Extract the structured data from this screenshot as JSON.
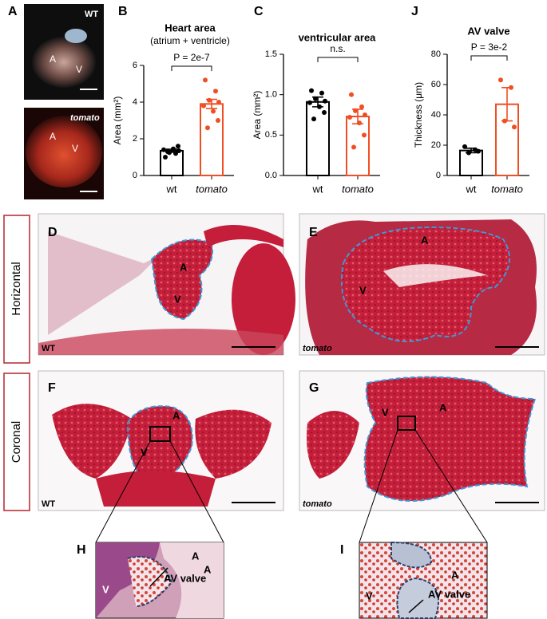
{
  "chart_data": [
    {
      "type": "bar",
      "title": "Heart area",
      "subtitle": "(atrium + ventricle)",
      "y_label": "Area (mm²)",
      "categories": [
        "wt",
        "tomato"
      ],
      "values": [
        1.35,
        3.9
      ],
      "errors": [
        0.08,
        0.25
      ],
      "points": [
        [
          1.0,
          1.2,
          1.25,
          1.35,
          1.4,
          1.45,
          1.6,
          1.3
        ],
        [
          5.2,
          4.6,
          4.1,
          4.0,
          3.8,
          3.5,
          3.0,
          2.6
        ]
      ],
      "colors": [
        "#000000",
        "#f04e23"
      ],
      "annotation": "P = 2e-7",
      "ylim": [
        0,
        6
      ],
      "yticks": [
        0,
        2,
        4,
        6
      ]
    },
    {
      "type": "bar",
      "title": "ventricular area",
      "y_label": "Area (mm²)",
      "categories": [
        "wt",
        "tomato"
      ],
      "values": [
        0.91,
        0.73
      ],
      "errors": [
        0.06,
        0.09
      ],
      "points": [
        [
          1.05,
          1.02,
          0.95,
          0.92,
          0.9,
          0.85,
          0.78,
          0.7
        ],
        [
          1.0,
          0.85,
          0.8,
          0.75,
          0.72,
          0.65,
          0.5,
          0.35
        ]
      ],
      "colors": [
        "#000000",
        "#f04e23"
      ],
      "annotation": "n.s.",
      "ylim": [
        0,
        1.5
      ],
      "yticks": [
        {
          "value": 0,
          "label": "0.0"
        },
        0.5,
        {
          "value": 1,
          "label": "1.0"
        },
        1.5
      ]
    },
    {
      "type": "bar",
      "title": "AV valve",
      "y_label": "Thickness (μm)",
      "categories": [
        "wt",
        "tomato"
      ],
      "values": [
        16.5,
        47
      ],
      "errors": [
        1.5,
        11
      ],
      "points": [
        [
          19,
          17,
          15,
          16
        ],
        [
          63,
          58,
          36,
          32
        ]
      ],
      "colors": [
        "#000000",
        "#f04e23"
      ],
      "annotation": "P = 3e-2",
      "ylim": [
        0,
        80
      ],
      "yticks": [
        0,
        20,
        40,
        60,
        80
      ]
    }
  ],
  "panels": {
    "letters": [
      "A",
      "B",
      "C",
      "J",
      "D",
      "E",
      "F",
      "G",
      "H",
      "I"
    ],
    "photo_labels": {
      "wt": "WT",
      "tomato": "tomato",
      "atrium": "A",
      "ventricle": "V"
    },
    "section_labels": {
      "horizontal": "Horizontal",
      "coronal": "Coronal"
    },
    "valve_label": "AV valve"
  }
}
